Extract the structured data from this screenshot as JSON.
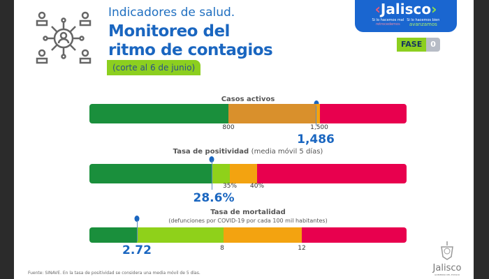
{
  "header": {
    "kicker": "Indicadores de salud.",
    "title_line1": "Monitoreo del",
    "title_line2": "ritmo de contagios",
    "cutoff": "(corte al 6 de junio)"
  },
  "brand": {
    "name": "Jalisco",
    "left_tag_1": "Si lo hacemos mal",
    "left_tag_2": "retrocedemos",
    "right_tag_1": "Si lo hacemos bien",
    "right_tag_2": "avanzamos",
    "phase_label": "FASE",
    "phase_value": "0"
  },
  "indicators": [
    {
      "title": "Casos activos",
      "thresholds": [
        "800",
        "1,500"
      ],
      "value": "1,486"
    },
    {
      "title": "Tasa de positividad",
      "subtitle": "(media móvil 5 días)",
      "thresholds": [
        "35%",
        "40%"
      ],
      "value": "28.6%"
    },
    {
      "title": "Tasa de mortalidad",
      "subtitle": "(defunciones por COVID-19 por cada 100 mil habitantes)",
      "thresholds": [
        "8",
        "12"
      ],
      "value": "2.72"
    }
  ],
  "colors": {
    "green": "#1a8f3c",
    "light_green": "#8fd11a",
    "orange": "#f3a310",
    "red": "#e8004e",
    "blue": "#1a66c0"
  },
  "footer": {
    "source": "Fuente: SINAVE. En la tasa de positividad se considera una media móvil de 5 días."
  },
  "seal": {
    "name": "Jalisco",
    "subtitle": "GOBIERNO DEL ESTADO"
  }
}
